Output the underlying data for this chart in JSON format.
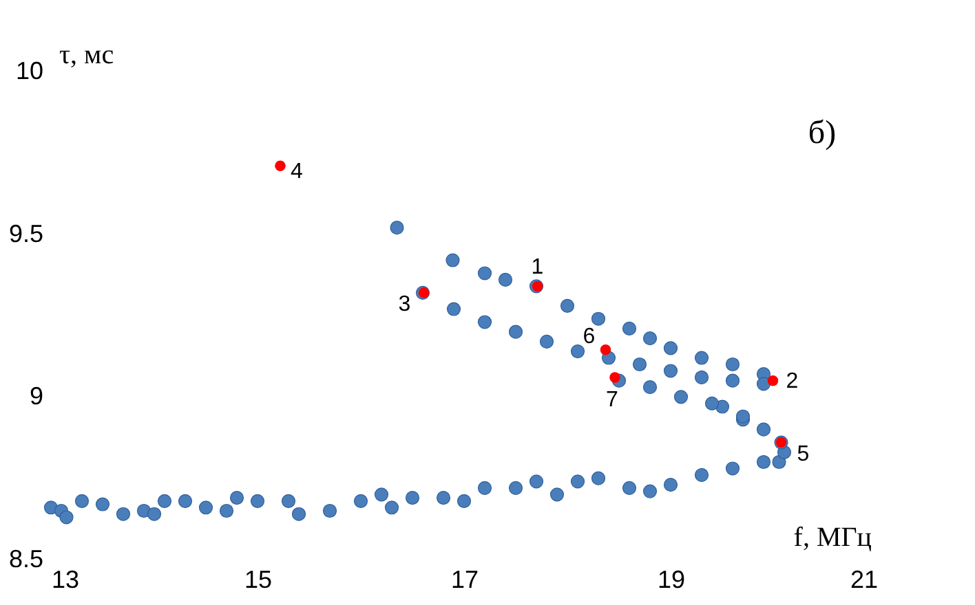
{
  "chart_data": {
    "type": "scatter",
    "title": "б)",
    "xlabel": "f, МГц",
    "ylabel": "τ, мс",
    "xlim": [
      13,
      21
    ],
    "xticks": [
      13,
      15,
      17,
      19,
      21
    ],
    "ylim": [
      8.5,
      10
    ],
    "yticks": [
      8.5,
      9,
      9.5,
      10
    ],
    "grid": false,
    "marker": "circle",
    "series": [
      {
        "color": "#4a7ebb",
        "x": [
          13.0,
          13.1,
          13.15,
          13.3,
          13.5,
          13.7,
          13.9,
          14.0,
          14.1,
          14.3,
          14.5,
          14.7,
          14.8,
          15.0,
          15.3,
          15.4,
          15.7,
          16.0,
          16.2,
          16.3,
          16.5,
          16.8,
          17.0,
          17.2,
          17.5,
          17.7,
          17.9,
          18.1,
          18.3,
          18.6,
          18.8,
          19.0,
          19.3,
          19.6,
          19.9,
          20.05,
          20.1,
          20.07,
          19.9,
          19.7,
          19.5,
          17.2,
          17.4,
          17.7,
          18.0,
          18.3,
          18.6,
          18.8,
          19.0,
          19.3,
          19.6,
          19.9,
          16.6,
          16.9,
          17.2,
          17.5,
          17.8,
          18.1,
          18.4,
          18.7,
          19.0,
          19.3,
          19.6,
          19.9,
          18.5,
          18.8,
          19.1,
          19.4,
          19.7,
          16.35,
          16.89
        ],
        "values": [
          8.66,
          8.65,
          8.63,
          8.68,
          8.67,
          8.64,
          8.65,
          8.64,
          8.68,
          8.68,
          8.66,
          8.65,
          8.69,
          8.68,
          8.68,
          8.64,
          8.65,
          8.68,
          8.7,
          8.66,
          8.69,
          8.69,
          8.68,
          8.72,
          8.72,
          8.74,
          8.7,
          8.74,
          8.75,
          8.72,
          8.71,
          8.73,
          8.76,
          8.78,
          8.8,
          8.8,
          8.83,
          8.86,
          8.9,
          8.93,
          8.97,
          9.38,
          9.36,
          9.34,
          9.28,
          9.24,
          9.21,
          9.18,
          9.15,
          9.12,
          9.1,
          9.07,
          9.32,
          9.27,
          9.23,
          9.2,
          9.17,
          9.14,
          9.12,
          9.1,
          9.08,
          9.06,
          9.05,
          9.04,
          9.05,
          9.03,
          9.0,
          8.98,
          8.94,
          9.52,
          9.42
        ]
      },
      {
        "color": "#ff0000",
        "x": [
          17.71,
          19.99,
          16.61,
          15.22,
          20.07,
          18.37,
          18.46
        ],
        "values": [
          9.34,
          9.05,
          9.32,
          9.71,
          8.86,
          9.145,
          9.06
        ]
      }
    ],
    "annotations": [
      {
        "text": "1",
        "x": 17.71,
        "y": 9.34
      },
      {
        "text": "2",
        "x": 19.99,
        "y": 9.05
      },
      {
        "text": "3",
        "x": 16.61,
        "y": 9.32
      },
      {
        "text": "4",
        "x": 15.22,
        "y": 9.71
      },
      {
        "text": "5",
        "x": 20.07,
        "y": 8.86
      },
      {
        "text": "6",
        "x": 18.37,
        "y": 9.145
      },
      {
        "text": "7",
        "x": 18.46,
        "y": 9.06
      }
    ]
  }
}
